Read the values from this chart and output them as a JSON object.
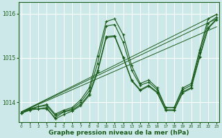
{
  "bg_color": "#cce8e8",
  "grid_color": "#ffffff",
  "line_color": "#1a5c1a",
  "marker_color": "#1a5c1a",
  "xlabel": "Graphe pression niveau de la mer (hPa)",
  "xlabel_fontsize": 6.5,
  "yticks": [
    1014,
    1015,
    1016
  ],
  "xticks": [
    0,
    1,
    2,
    3,
    4,
    5,
    6,
    7,
    8,
    9,
    10,
    11,
    12,
    13,
    14,
    15,
    16,
    17,
    18,
    19,
    20,
    21,
    22,
    23
  ],
  "ylim": [
    1013.55,
    1016.25
  ],
  "xlim": [
    -0.3,
    23.3
  ],
  "figsize": [
    3.2,
    2.0
  ],
  "dpi": 100,
  "series": [
    [
      1013.75,
      1013.85,
      1013.85,
      1013.85,
      1013.65,
      1013.78,
      1013.82,
      1013.95,
      1014.18,
      1014.72,
      1015.48,
      1015.5,
      1015.02,
      1014.5,
      1014.28,
      1014.38,
      1014.23,
      1013.83,
      1013.83,
      1014.23,
      1014.33,
      1015.03,
      1015.68,
      1015.88
    ],
    [
      1013.75,
      1013.82,
      1013.85,
      1013.88,
      1013.62,
      1013.72,
      1013.8,
      1013.92,
      1014.15,
      1014.68,
      1015.45,
      1015.48,
      1015.0,
      1014.48,
      1014.26,
      1014.36,
      1014.21,
      1013.81,
      1013.81,
      1014.21,
      1014.31,
      1015.01,
      1015.66,
      1015.86
    ],
    [
      1013.75,
      1013.82,
      1013.9,
      1013.92,
      1013.7,
      1013.79,
      1013.85,
      1014.0,
      1014.25,
      1014.88,
      1015.72,
      1015.75,
      1015.35,
      1014.72,
      1014.38,
      1014.45,
      1014.28,
      1013.88,
      1013.88,
      1014.28,
      1014.38,
      1015.12,
      1015.78,
      1015.92
    ],
    [
      1013.75,
      1013.85,
      1013.9,
      1013.95,
      1013.73,
      1013.82,
      1013.88,
      1014.05,
      1014.32,
      1015.05,
      1015.82,
      1015.88,
      1015.52,
      1014.82,
      1014.42,
      1014.5,
      1014.32,
      1013.88,
      1013.88,
      1014.32,
      1014.42,
      1015.18,
      1015.88,
      1015.98
    ]
  ],
  "straight_lines": [
    {
      "x0": 0,
      "y0": 1013.78,
      "x1": 23,
      "y1": 1015.98
    },
    {
      "x0": 0,
      "y0": 1013.78,
      "x1": 23,
      "y1": 1015.88
    },
    {
      "x0": 0,
      "y0": 1013.78,
      "x1": 23,
      "y1": 1015.7
    }
  ]
}
